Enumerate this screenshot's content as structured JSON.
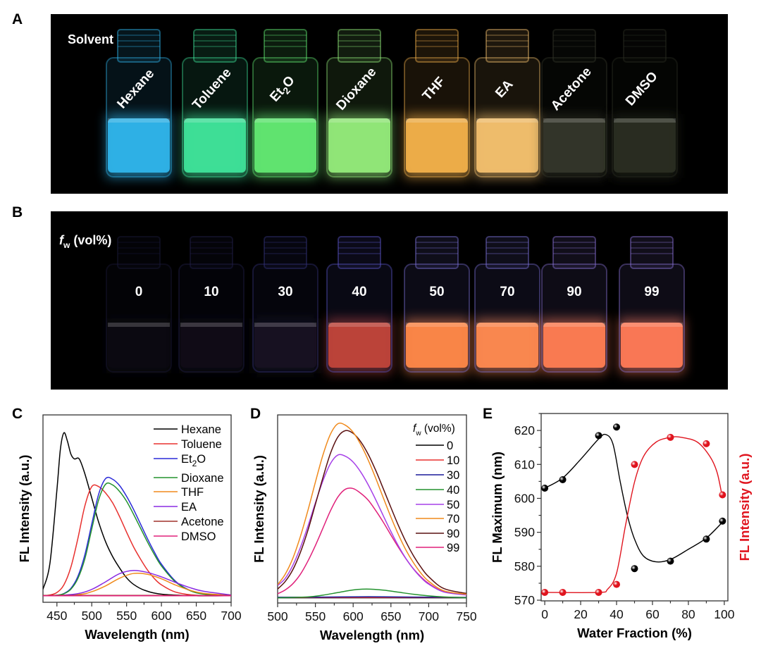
{
  "panels": {
    "A": {
      "letter": "A",
      "title": "Solvent",
      "vials": [
        {
          "label": "Hexane",
          "color": "#2fb4ea"
        },
        {
          "label": "Toluene",
          "color": "#3fe39a"
        },
        {
          "label": "Et",
          "sub": "2",
          "tail": "O",
          "color": "#62e872"
        },
        {
          "label": "Dioxane",
          "color": "#93ea7a"
        },
        {
          "label": "THF",
          "color": "#f1b04a"
        },
        {
          "label": "EA",
          "color": "#f3c06e"
        },
        {
          "label": "Acetone",
          "color": "#34362a"
        },
        {
          "label": "DMSO",
          "color": "#2a2d22"
        }
      ]
    },
    "B": {
      "letter": "B",
      "title_f": "f",
      "title_sub": "w",
      "title_rest": " (vol%)",
      "vials": [
        {
          "label": "0",
          "color": "#0c0a12",
          "glass": "#1b1a3a"
        },
        {
          "label": "10",
          "color": "#110c17",
          "glass": "#22204a"
        },
        {
          "label": "30",
          "color": "#181222",
          "glass": "#34337a"
        },
        {
          "label": "40",
          "color": "#c0453a",
          "glass": "#5a55c8"
        },
        {
          "label": "50",
          "color": "#ff8848",
          "glass": "#7a70d8"
        },
        {
          "label": "70",
          "color": "#ff8a50",
          "glass": "#7a70d8"
        },
        {
          "label": "90",
          "color": "#ff7d52",
          "glass": "#8a72d8"
        },
        {
          "label": "99",
          "color": "#ff7a56",
          "glass": "#8a72d8"
        }
      ]
    },
    "C": {
      "letter": "C"
    },
    "D": {
      "letter": "D"
    },
    "E": {
      "letter": "E"
    }
  },
  "chart_data": [
    {
      "id": "C",
      "type": "line",
      "xlabel": "Wavelength (nm)",
      "ylabel": "FL Intensity (a.u.)",
      "xlim": [
        430,
        700
      ],
      "ylim": [
        -0.04,
        1.11
      ],
      "xticks": [
        450,
        500,
        550,
        600,
        650,
        700
      ],
      "xminor": 25,
      "legend": "top-right",
      "series": [
        {
          "name": "Hexane",
          "color": "#000000",
          "x": [
            430,
            440,
            450,
            455,
            460,
            465,
            470,
            475,
            482,
            490,
            500,
            510,
            520,
            530,
            540,
            550,
            560,
            575,
            600,
            650,
            700
          ],
          "y": [
            0.04,
            0.2,
            0.65,
            0.9,
            1.0,
            0.95,
            0.87,
            0.84,
            0.84,
            0.75,
            0.6,
            0.45,
            0.33,
            0.24,
            0.17,
            0.11,
            0.07,
            0.035,
            0.01,
            0.0,
            0.0
          ]
        },
        {
          "name": "Toluene",
          "color": "#e8312f",
          "x": [
            430,
            440,
            450,
            460,
            470,
            480,
            490,
            500,
            510,
            520,
            530,
            540,
            550,
            560,
            570,
            580,
            590,
            600,
            620,
            650,
            700
          ],
          "y": [
            0,
            0.005,
            0.02,
            0.067,
            0.175,
            0.35,
            0.55,
            0.67,
            0.67,
            0.63,
            0.57,
            0.485,
            0.39,
            0.3,
            0.225,
            0.158,
            0.105,
            0.067,
            0.023,
            0.003,
            0
          ]
        },
        {
          "name": "Et2O",
          "name_main": "Et",
          "name_sub": "2",
          "name_tail": "O",
          "color": "#2a2ad8",
          "x": [
            430,
            440,
            450,
            460,
            470,
            480,
            490,
            500,
            510,
            520,
            530,
            540,
            550,
            560,
            570,
            580,
            590,
            600,
            620,
            640,
            660,
            700
          ],
          "y": [
            0,
            0.001,
            0.003,
            0.014,
            0.045,
            0.118,
            0.25,
            0.44,
            0.625,
            0.72,
            0.715,
            0.676,
            0.61,
            0.53,
            0.44,
            0.35,
            0.267,
            0.194,
            0.09,
            0.035,
            0.012,
            0
          ]
        },
        {
          "name": "Dioxane",
          "color": "#23922e",
          "x": [
            430,
            440,
            450,
            460,
            470,
            480,
            490,
            500,
            510,
            520,
            530,
            540,
            550,
            560,
            570,
            580,
            590,
            600,
            620,
            640,
            660,
            700
          ],
          "y": [
            0,
            0.001,
            0.003,
            0.012,
            0.04,
            0.105,
            0.225,
            0.41,
            0.59,
            0.685,
            0.68,
            0.64,
            0.58,
            0.5,
            0.415,
            0.33,
            0.252,
            0.183,
            0.085,
            0.033,
            0.011,
            0
          ]
        },
        {
          "name": "THF",
          "color": "#f08a1c",
          "x": [
            430,
            480,
            500,
            520,
            540,
            560,
            580,
            600,
            620,
            640,
            660,
            700
          ],
          "y": [
            0,
            0.007,
            0.025,
            0.061,
            0.108,
            0.137,
            0.132,
            0.104,
            0.066,
            0.035,
            0.015,
            0.002
          ]
        },
        {
          "name": "EA",
          "color": "#8a2be2",
          "x": [
            430,
            450,
            480,
            500,
            520,
            540,
            560,
            580,
            600,
            620,
            640,
            660,
            700
          ],
          "y": [
            0,
            0.001,
            0.013,
            0.039,
            0.086,
            0.136,
            0.155,
            0.143,
            0.116,
            0.082,
            0.051,
            0.028,
            0.005
          ]
        },
        {
          "name": "Acetone",
          "color": "#a0302a",
          "x": [
            430,
            700
          ],
          "y": [
            0.002,
            0.002
          ]
        },
        {
          "name": "DMSO",
          "color": "#e0207a",
          "x": [
            430,
            700
          ],
          "y": [
            0,
            0
          ]
        }
      ]
    },
    {
      "id": "D",
      "type": "line",
      "xlabel": "Wavelength (nm)",
      "ylabel": "FL Intensity (a.u.)",
      "xlim": [
        500,
        750
      ],
      "ylim": [
        -0.03,
        1.05
      ],
      "xticks": [
        500,
        550,
        600,
        650,
        700,
        750
      ],
      "xminor": 25,
      "legend": "top-right",
      "legend_title_f": "f",
      "legend_title_sub": "w",
      "legend_title_rest": " (vol%)",
      "series": [
        {
          "name": "0",
          "color": "#000000",
          "x": [
            500,
            750
          ],
          "y": [
            0,
            0
          ]
        },
        {
          "name": "10",
          "color": "#e8312f",
          "x": [
            500,
            750
          ],
          "y": [
            0.002,
            0.002
          ]
        },
        {
          "name": "30",
          "color": "#1a1a9a",
          "x": [
            500,
            560,
            620,
            680,
            750
          ],
          "y": [
            0.003,
            0.004,
            0.006,
            0.004,
            0.002
          ]
        },
        {
          "name": "40",
          "color": "#23922e",
          "x": [
            500,
            540,
            560,
            580,
            600,
            618,
            640,
            660,
            680,
            700,
            720,
            750
          ],
          "y": [
            0,
            0.005,
            0.015,
            0.03,
            0.045,
            0.05,
            0.044,
            0.032,
            0.02,
            0.011,
            0.005,
            0
          ]
        },
        {
          "name": "50",
          "color": "#a640e8",
          "x": [
            500,
            510,
            520,
            530,
            540,
            550,
            560,
            570,
            580,
            590,
            600,
            610,
            620,
            630,
            640,
            650,
            660,
            670,
            680,
            690,
            700,
            720,
            750
          ],
          "y": [
            0.07,
            0.111,
            0.185,
            0.287,
            0.41,
            0.545,
            0.672,
            0.771,
            0.82,
            0.812,
            0.779,
            0.722,
            0.648,
            0.562,
            0.47,
            0.38,
            0.297,
            0.224,
            0.164,
            0.115,
            0.078,
            0.033,
            0.016
          ]
        },
        {
          "name": "70",
          "color": "#f08a1c",
          "x": [
            500,
            510,
            520,
            530,
            540,
            550,
            560,
            570,
            580,
            590,
            600,
            610,
            620,
            630,
            640,
            650,
            660,
            670,
            680,
            690,
            700,
            720,
            750
          ],
          "y": [
            0.075,
            0.135,
            0.225,
            0.35,
            0.5,
            0.664,
            0.82,
            0.94,
            1.0,
            0.99,
            0.95,
            0.88,
            0.79,
            0.685,
            0.573,
            0.463,
            0.362,
            0.273,
            0.2,
            0.14,
            0.095,
            0.04,
            0.02
          ]
        },
        {
          "name": "90",
          "color": "#5a1010",
          "x": [
            500,
            510,
            520,
            530,
            540,
            550,
            560,
            570,
            580,
            590,
            600,
            610,
            620,
            630,
            640,
            650,
            660,
            670,
            680,
            690,
            700,
            720,
            750
          ],
          "y": [
            0.05,
            0.093,
            0.16,
            0.259,
            0.386,
            0.537,
            0.69,
            0.83,
            0.925,
            0.96,
            0.944,
            0.896,
            0.823,
            0.73,
            0.625,
            0.518,
            0.414,
            0.32,
            0.24,
            0.174,
            0.121,
            0.053,
            0.025
          ]
        },
        {
          "name": "99",
          "color": "#e0207a",
          "x": [
            500,
            510,
            520,
            530,
            540,
            550,
            560,
            570,
            580,
            590,
            600,
            610,
            620,
            630,
            640,
            650,
            660,
            670,
            680,
            690,
            700,
            720,
            750
          ],
          "y": [
            0.023,
            0.045,
            0.08,
            0.134,
            0.21,
            0.3,
            0.4,
            0.5,
            0.58,
            0.624,
            0.627,
            0.6,
            0.56,
            0.5,
            0.433,
            0.36,
            0.289,
            0.223,
            0.165,
            0.119,
            0.082,
            0.035,
            0.02
          ]
        }
      ]
    },
    {
      "id": "E",
      "type": "scatter",
      "xlabel": "Water Fraction (%)",
      "ylabel": "FL Maximum (nm)",
      "y2label": "FL Intensity (a.u.)",
      "xlim": [
        -2,
        102
      ],
      "ylim": [
        569.8,
        625
      ],
      "y2lim": [
        -0.023,
        1.149
      ],
      "xticks": [
        0,
        20,
        40,
        60,
        80,
        100
      ],
      "xminor": 10,
      "yticks": [
        570,
        580,
        590,
        600,
        610,
        620
      ],
      "yminor": 5,
      "series": [
        {
          "name": "FL Maximum",
          "axis": "left",
          "color": "#000000",
          "x": [
            0,
            10,
            30,
            40,
            50,
            70,
            90,
            99
          ],
          "y": [
            603,
            605.5,
            618.5,
            621,
            579.3,
            581.5,
            588,
            593.3
          ],
          "fit_x": [
            0,
            10,
            20,
            30,
            34,
            38,
            42,
            46,
            50,
            55,
            62,
            70,
            80,
            90,
            99
          ],
          "fit_y": [
            603,
            606,
            611.5,
            617.5,
            618.8,
            616,
            605,
            595,
            588,
            583,
            581.3,
            582,
            585,
            588.3,
            593
          ]
        },
        {
          "name": "FL Intensity",
          "axis": "right",
          "color": "#e0141e",
          "x": [
            0,
            10,
            30,
            40,
            50,
            70,
            90,
            99
          ],
          "y": [
            0.03,
            0.03,
            0.03,
            0.08,
            0.83,
            1.0,
            0.96,
            0.64
          ],
          "fit_x": [
            0,
            30,
            35,
            40,
            45,
            50,
            55,
            62,
            70,
            76,
            85,
            92,
            96,
            99
          ],
          "fit_y": [
            0.03,
            0.03,
            0.05,
            0.15,
            0.45,
            0.72,
            0.88,
            0.97,
            1.0,
            1.0,
            0.97,
            0.88,
            0.78,
            0.62
          ]
        }
      ]
    }
  ]
}
